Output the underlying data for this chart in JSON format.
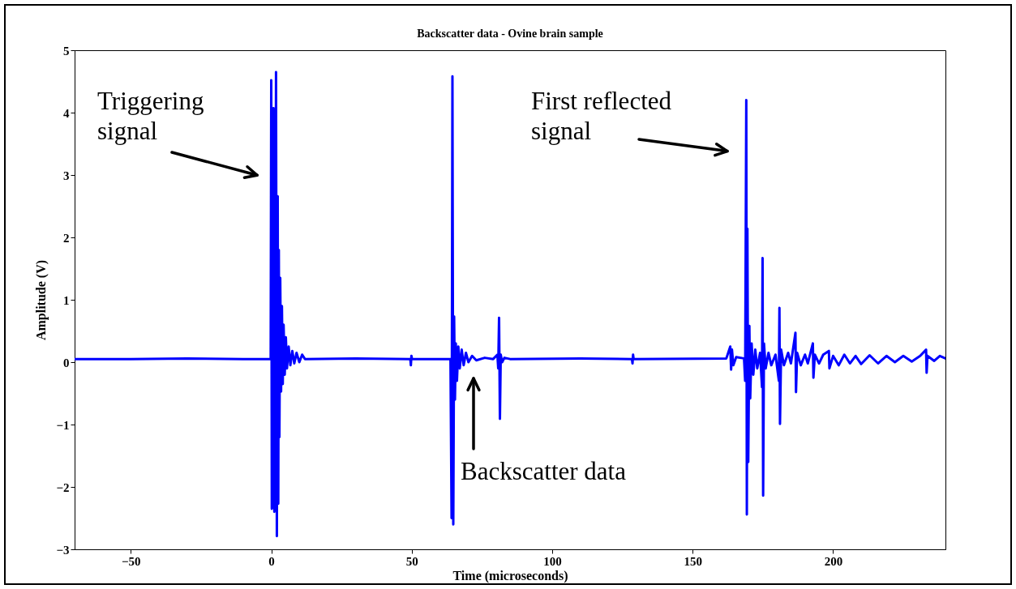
{
  "chart_data": {
    "type": "line",
    "title": "Backscatter data - Ovine brain sample",
    "xlabel": "Time (microseconds)",
    "ylabel": "Amplitude (V)",
    "xlim": [
      -70,
      240
    ],
    "xticks": [
      -50,
      0,
      50,
      100,
      150,
      200
    ],
    "ylim": [
      -3,
      5
    ],
    "yticks": [
      -3,
      -2,
      -1,
      0,
      1,
      2,
      3,
      4,
      5
    ],
    "annotations": [
      "Triggering signal",
      "First reflected signal",
      "Backscatter data"
    ],
    "series": [
      {
        "color": "#0000ff",
        "x": [
          -70,
          -50,
          -30,
          -10,
          -1,
          -0.2,
          0,
          0.2,
          0.5,
          0.8,
          1.1,
          1.4,
          1.7,
          2.0,
          2.3,
          2.5,
          2.7,
          2.9,
          3.2,
          3.5,
          3.8,
          4.1,
          4.4,
          4.8,
          5.2,
          5.6,
          6.2,
          6.8,
          7.5,
          8.2,
          9,
          10,
          11,
          12,
          30,
          49.5,
          49.7,
          49.9,
          50.1,
          63.8,
          64.2,
          64.5,
          64.8,
          65.1,
          65.4,
          65.7,
          66.1,
          66.6,
          67.1,
          67.8,
          68.5,
          69.3,
          70.2,
          71.5,
          73,
          76,
          79,
          80.5,
          80.8,
          81.1,
          81.4,
          81.7,
          82.2,
          83,
          85,
          110,
          128.4,
          128.6,
          128.8,
          129,
          162,
          163.4,
          163.7,
          164,
          164.5,
          165.5,
          168.3,
          168.7,
          169.1,
          169.3,
          169.5,
          169.8,
          170.2,
          170.5,
          171,
          171.6,
          172.3,
          173,
          174,
          174.7,
          174.9,
          175.1,
          175.4,
          176,
          177,
          178,
          179.5,
          180.7,
          180.9,
          181.1,
          181.5,
          182.5,
          184,
          185,
          186.6,
          186.8,
          187.2,
          188.5,
          190,
          191,
          192.8,
          193,
          193.5,
          195,
          196.5,
          198.5,
          198.7,
          200,
          202,
          204,
          206,
          208,
          210,
          213,
          216,
          219,
          222,
          225,
          228,
          231,
          233.1,
          233.3,
          233.6,
          236,
          238,
          240
        ],
        "values": [
          0.05,
          0.05,
          0.06,
          0.05,
          0.05,
          0.05,
          4.52,
          -2.35,
          -2.3,
          4.07,
          -2.4,
          -2.0,
          4.65,
          -2.79,
          2.66,
          -2.27,
          1.8,
          -1.2,
          1.35,
          -0.47,
          0.9,
          -0.35,
          0.6,
          -0.2,
          0.4,
          -0.1,
          0.25,
          -0.05,
          0.18,
          -0.02,
          0.15,
          0.0,
          0.12,
          0.05,
          0.06,
          0.05,
          -0.05,
          0.1,
          0.05,
          0.05,
          -2.5,
          4.58,
          -2.6,
          0.73,
          -0.6,
          0.3,
          -0.3,
          0.25,
          -0.1,
          0.2,
          -0.05,
          0.15,
          0.0,
          0.1,
          0.03,
          0.07,
          0.05,
          0.12,
          -0.1,
          0.71,
          -0.91,
          0.12,
          0.0,
          0.07,
          0.05,
          0.06,
          0.05,
          -0.02,
          0.12,
          0.05,
          0.06,
          0.25,
          -0.12,
          0.2,
          -0.05,
          0.08,
          0.06,
          -0.3,
          4.2,
          -2.44,
          2.14,
          -1.6,
          0.58,
          -0.58,
          0.3,
          -0.2,
          0.2,
          -0.1,
          0.15,
          -0.4,
          1.67,
          -2.14,
          0.3,
          -0.1,
          0.15,
          -0.05,
          0.12,
          -0.3,
          0.87,
          -0.99,
          0.2,
          -0.05,
          0.15,
          -0.02,
          0.47,
          -0.48,
          0.15,
          -0.05,
          0.12,
          -0.02,
          0.3,
          -0.25,
          0.12,
          -0.02,
          0.12,
          0.18,
          -0.1,
          0.1,
          -0.05,
          0.12,
          -0.02,
          0.1,
          -0.03,
          0.11,
          -0.02,
          0.1,
          0.0,
          0.1,
          0.01,
          0.1,
          0.2,
          -0.17,
          0.1,
          0.02,
          0.1,
          0.06
        ]
      }
    ]
  }
}
